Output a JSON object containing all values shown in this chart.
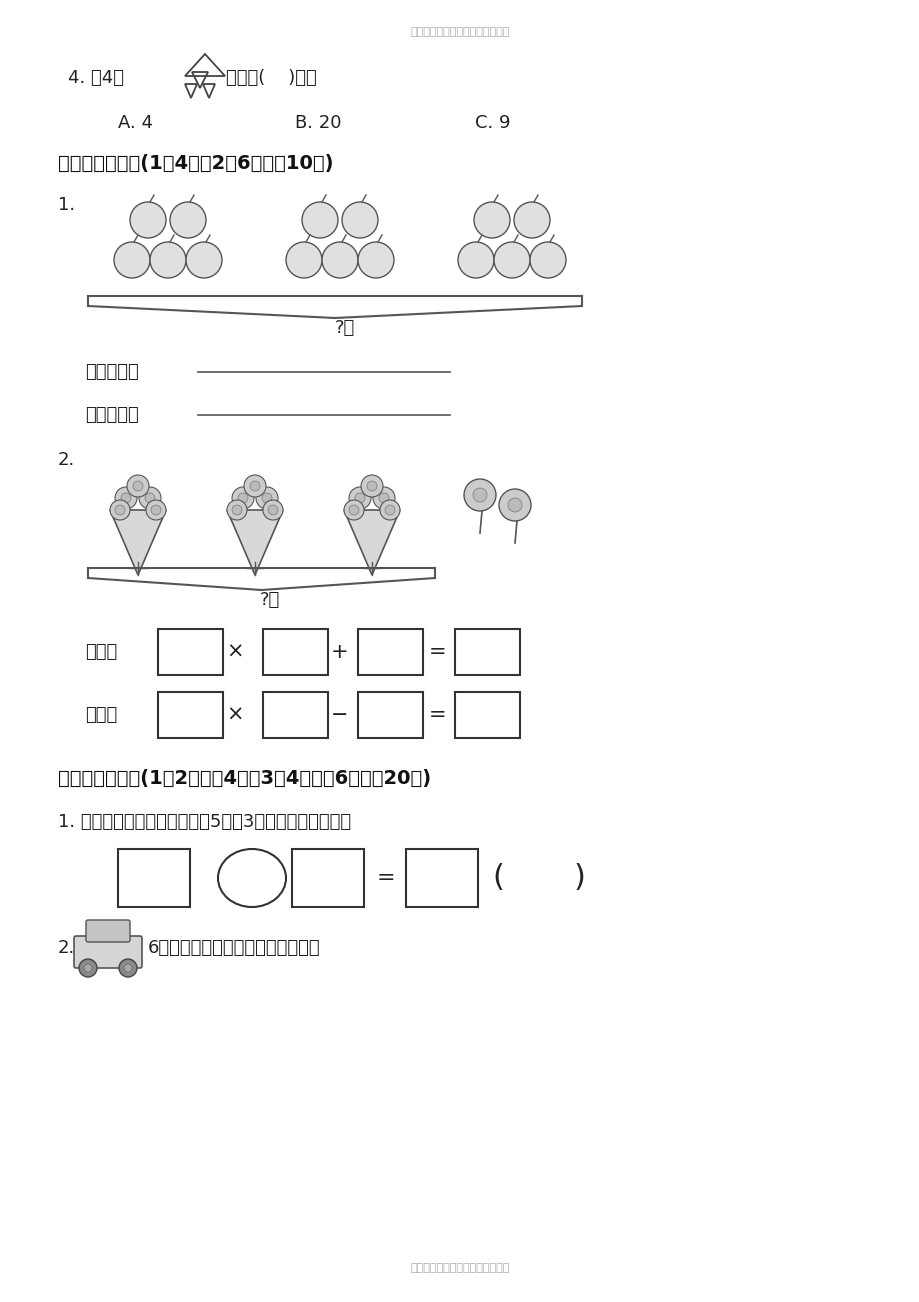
{
  "header_text": "最新苏教版小学数学精品资料设计",
  "footer_text": "最新苏教版小学数学精品资料设计",
  "section4_title": "四、看图列式。(1题4分，2题6分，共10分)",
  "section5_title": "五、解决问题。(1、2题每题4分，3、4题每题6分，共20分)",
  "s5_q1_text": "1. 小朋友们去划船，每条船坐5人，3条船一共坐多少人？",
  "bg_color": "#ffffff"
}
